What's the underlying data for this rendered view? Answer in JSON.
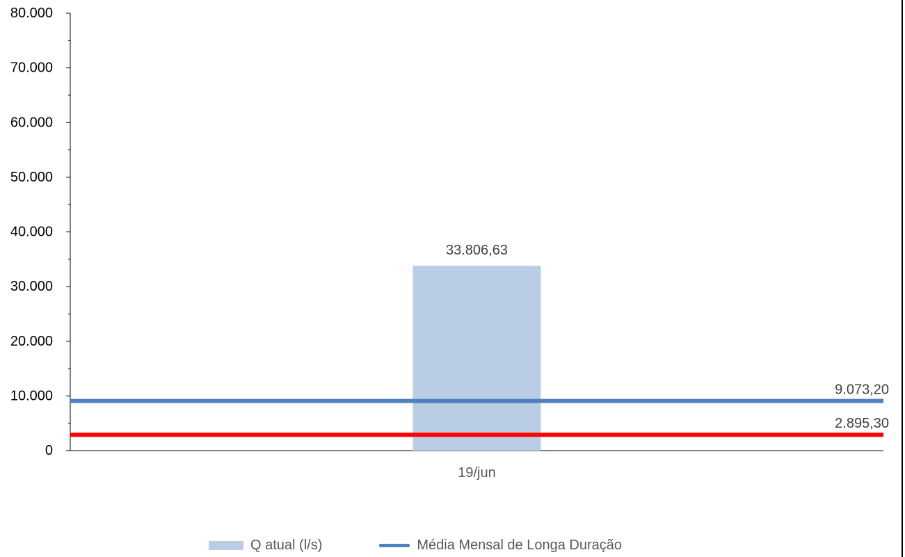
{
  "chart_data": {
    "type": "bar",
    "categories": [
      "19/jun"
    ],
    "series": [
      {
        "name": "Q atual (l/s)",
        "kind": "bar",
        "values": [
          33806.63
        ],
        "data_labels": [
          "33.806,63"
        ],
        "color": "#B9CDE5"
      },
      {
        "name": "Média Mensal de Longa Duração",
        "kind": "line",
        "values": [
          9073.2
        ],
        "data_labels": [
          "9.073,20"
        ],
        "color": "#4F81BD"
      },
      {
        "kind": "line",
        "values": [
          2895.3
        ],
        "data_labels": [
          "2.895,30"
        ],
        "color": "#FF0000"
      }
    ],
    "ylim": [
      0,
      80000
    ],
    "y_ticks": [
      0,
      10000,
      20000,
      30000,
      40000,
      50000,
      60000,
      70000,
      80000
    ],
    "y_tick_labels": [
      "0",
      "10.000",
      "20.000",
      "30.000",
      "40.000",
      "50.000",
      "60.000",
      "70.000",
      "80.000"
    ],
    "grid": false,
    "legend_position": "bottom"
  }
}
